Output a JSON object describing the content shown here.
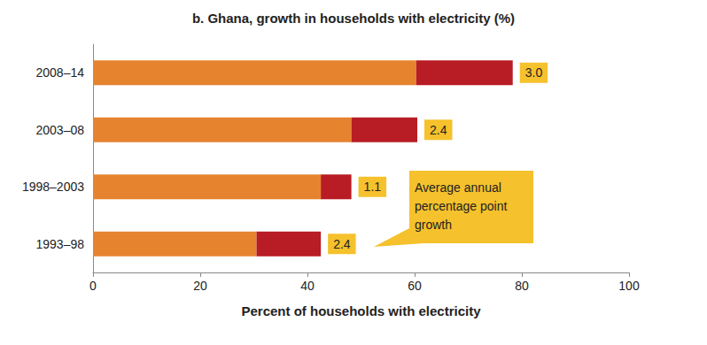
{
  "chart_data": {
    "type": "bar",
    "title": "b. Ghana, growth in households with electricity (%)",
    "xlabel": "Percent of households with electricity",
    "orientation": "horizontal",
    "stacked": true,
    "grid": false,
    "categories": [
      "1993–98",
      "1998–2003",
      "2003–08",
      "2008–14"
    ],
    "series": [
      {
        "color": "#e5832f",
        "values": [
          30.5,
          42.5,
          48.2,
          60.3
        ]
      },
      {
        "color": "#b81c24",
        "values": [
          12,
          5.7,
          12.3,
          18
        ]
      }
    ],
    "growth": {
      "values": [
        2.4,
        1.1,
        2.4,
        3.0
      ],
      "value_labels": [
        "2.4",
        "1.1",
        "2.4",
        "3.0"
      ],
      "color": "#f5c12c"
    },
    "annotation": "Average annual percentage point growth",
    "xlim": [
      0,
      100
    ],
    "xticks": [
      0,
      20,
      40,
      60,
      80,
      100
    ]
  }
}
